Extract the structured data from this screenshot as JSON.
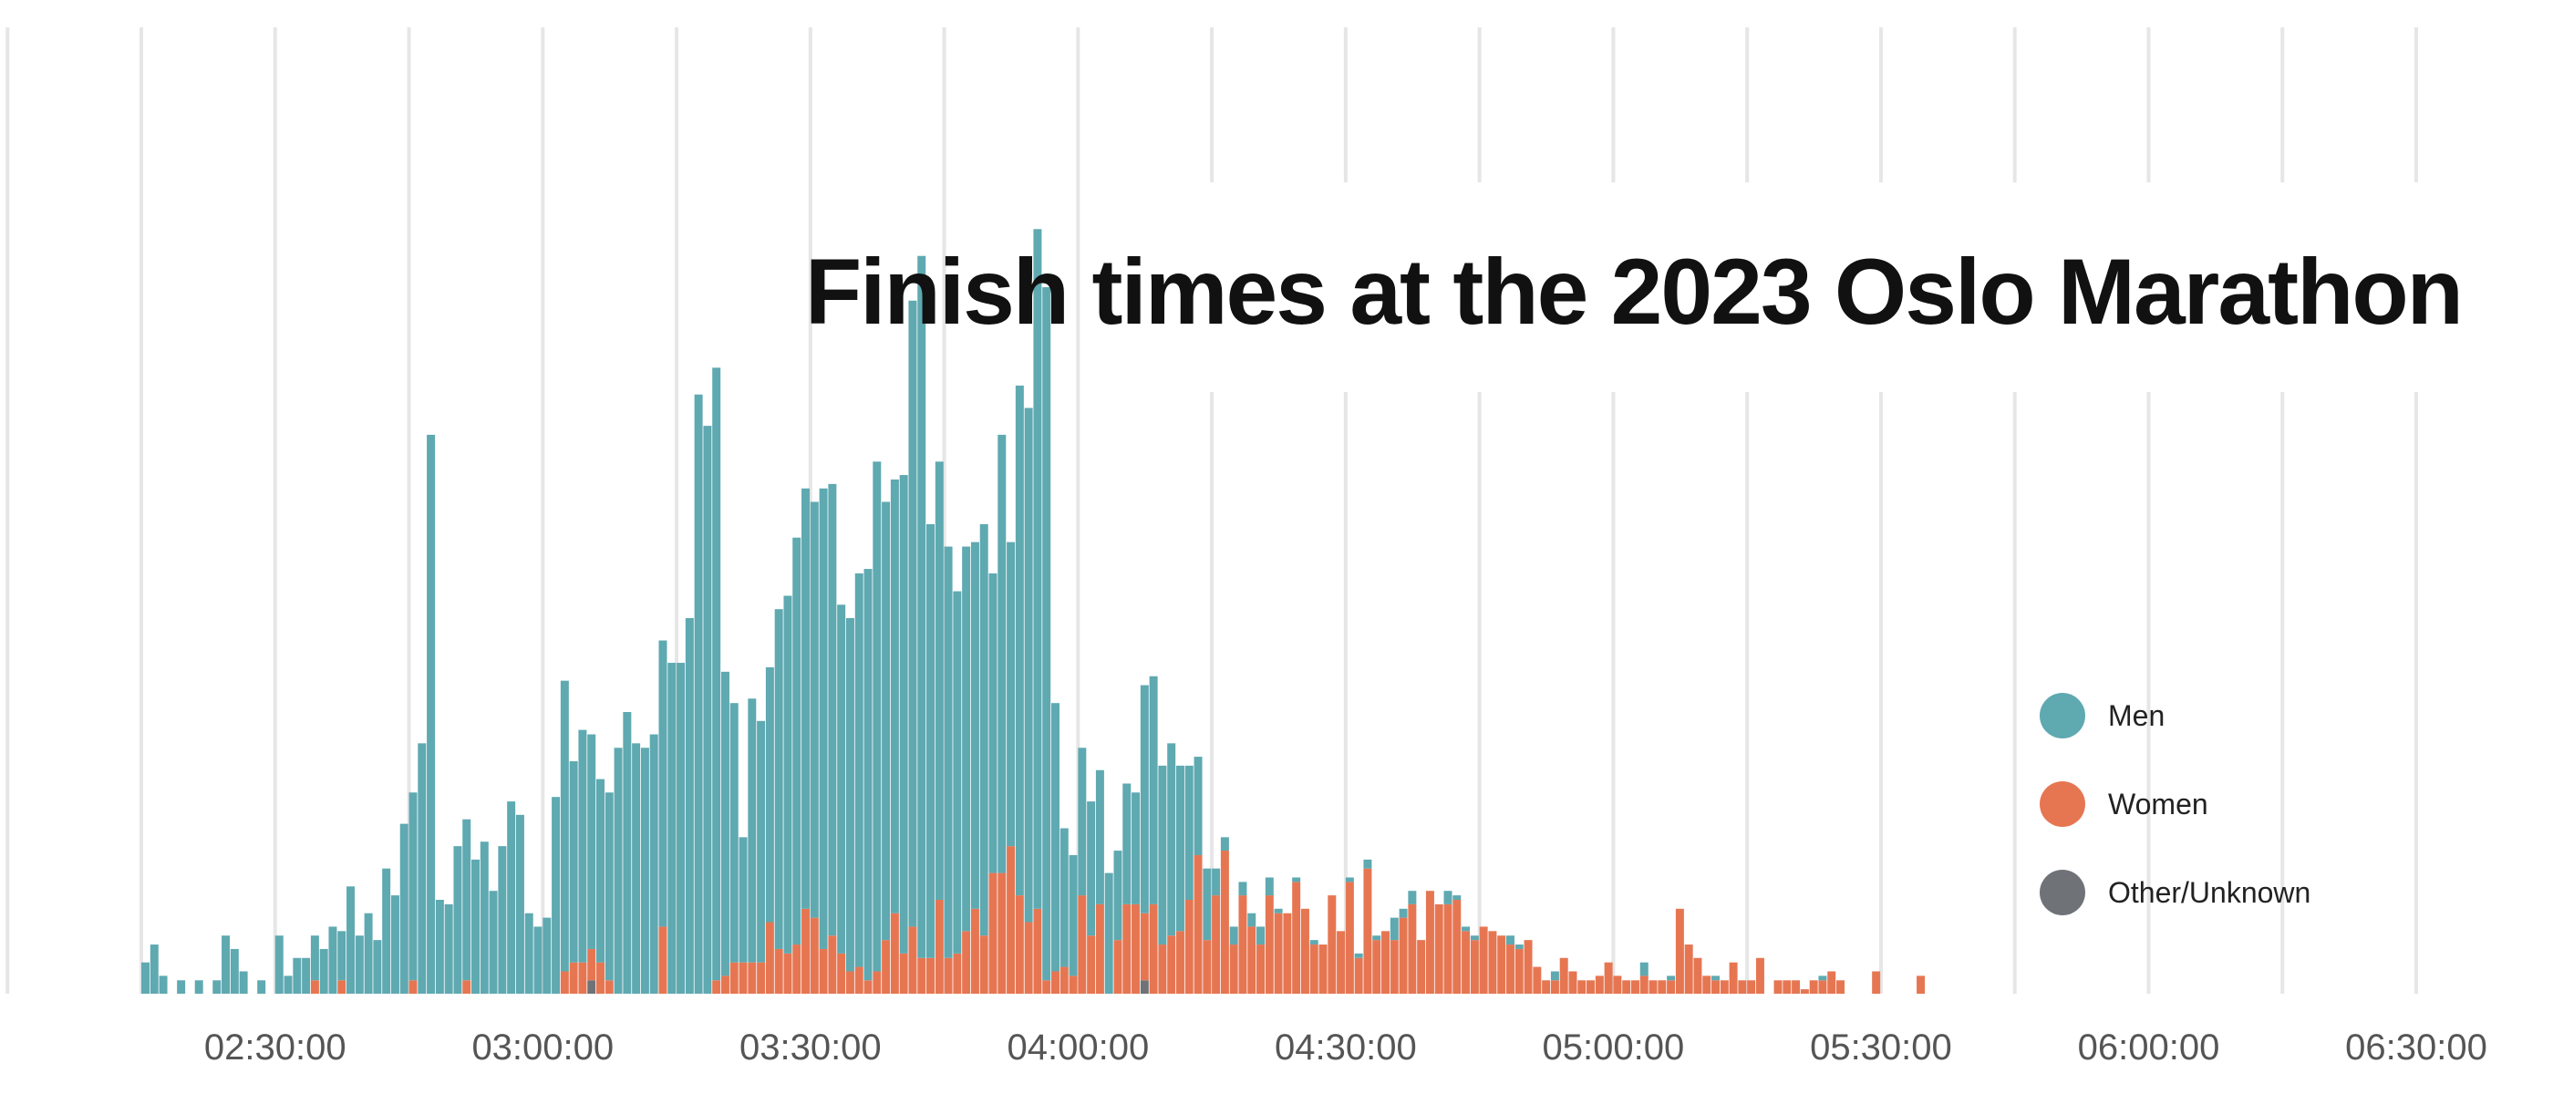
{
  "chart_data": {
    "type": "bar",
    "title": "Finish times at the 2023 Oslo Marathon",
    "xlabel": "",
    "ylabel": "",
    "stacked": true,
    "bin_minutes": 1,
    "x_start": "02:15:00",
    "x_range": [
      "02:15:00",
      "06:30:00"
    ],
    "y_range": [
      0,
      210
    ],
    "grid": "vertical",
    "legend_position": "bottom-right",
    "x_ticks": [
      "02:30:00",
      "03:00:00",
      "03:30:00",
      "04:00:00",
      "04:30:00",
      "05:00:00",
      "05:30:00",
      "06:00:00",
      "06:30:00"
    ],
    "colors": {
      "Men": "#5fa9b1",
      "Women": "#e67652",
      "Other/Unknown": "#6f7378",
      "grid": "#e6e6e6",
      "title": "#111111",
      "tick": "#555555"
    },
    "series": [
      {
        "name": "Men",
        "values": [
          7,
          11,
          4,
          0,
          3,
          0,
          3,
          0,
          3,
          13,
          10,
          5,
          0,
          3,
          0,
          13,
          4,
          8,
          8,
          10,
          10,
          15,
          11,
          24,
          13,
          18,
          12,
          28,
          22,
          38,
          42,
          56,
          125,
          21,
          20,
          33,
          36,
          30,
          34,
          23,
          33,
          43,
          40,
          18,
          15,
          17,
          44,
          65,
          45,
          52,
          48,
          41,
          42,
          55,
          63,
          56,
          55,
          58,
          64,
          74,
          74,
          84,
          134,
          127,
          137,
          68,
          58,
          28,
          59,
          54,
          57,
          76,
          80,
          91,
          94,
          93,
          103,
          101,
          78,
          79,
          88,
          92,
          114,
          98,
          97,
          107,
          140,
          157,
          97,
          98,
          92,
          81,
          86,
          82,
          92,
          67,
          98,
          68,
          114,
          115,
          152,
          155,
          60,
          31,
          27,
          33,
          30,
          30,
          27,
          20,
          27,
          25,
          51,
          51,
          40,
          43,
          37,
          30,
          22,
          16,
          6,
          3,
          4,
          3,
          3,
          4,
          4,
          1,
          0,
          1,
          0,
          1,
          0,
          0,
          0,
          1,
          1,
          2,
          1,
          0,
          5,
          2,
          3,
          0,
          0,
          0,
          3,
          1,
          1,
          1,
          0,
          0,
          0,
          2,
          1,
          0,
          0,
          0,
          2,
          0,
          0,
          0,
          0,
          0,
          0,
          0,
          0,
          0,
          3,
          0,
          0,
          1,
          0,
          0,
          0,
          0,
          1,
          0,
          0,
          0,
          0,
          0,
          0,
          0,
          0,
          0,
          0,
          0,
          1,
          0,
          0,
          0,
          0,
          0,
          0,
          0,
          0,
          0,
          0,
          0,
          0,
          0,
          0,
          0,
          0,
          0,
          0,
          0,
          0,
          0,
          0,
          0,
          0,
          0,
          0,
          0,
          0,
          0,
          0,
          0,
          0,
          0,
          0,
          0,
          0,
          0,
          0,
          0,
          0,
          0,
          0,
          0,
          0,
          0,
          0,
          0,
          0,
          0,
          0,
          0,
          0,
          0,
          0,
          0,
          0,
          0,
          0,
          0,
          0,
          0,
          0,
          0,
          0,
          0,
          0,
          0,
          0,
          0,
          0,
          0
        ]
      },
      {
        "name": "Women",
        "values": [
          0,
          0,
          0,
          0,
          0,
          0,
          0,
          0,
          0,
          0,
          0,
          0,
          0,
          0,
          0,
          0,
          0,
          0,
          0,
          3,
          0,
          0,
          3,
          0,
          0,
          0,
          0,
          0,
          0,
          0,
          3,
          0,
          0,
          0,
          0,
          0,
          3,
          0,
          0,
          0,
          0,
          0,
          0,
          0,
          0,
          0,
          0,
          5,
          7,
          7,
          7,
          7,
          3,
          0,
          0,
          0,
          0,
          0,
          15,
          0,
          0,
          0,
          0,
          0,
          3,
          4,
          7,
          7,
          7,
          7,
          16,
          10,
          9,
          11,
          19,
          17,
          10,
          13,
          9,
          5,
          6,
          3,
          5,
          12,
          18,
          9,
          15,
          8,
          8,
          21,
          8,
          9,
          14,
          19,
          13,
          27,
          27,
          33,
          22,
          16,
          19,
          3,
          5,
          6,
          4,
          22,
          13,
          20,
          0,
          12,
          20,
          20,
          15,
          20,
          11,
          13,
          14,
          21,
          31,
          12,
          22,
          32,
          11,
          22,
          15,
          11,
          22,
          18,
          18,
          25,
          19,
          11,
          11,
          22,
          14,
          25,
          8,
          28,
          12,
          14,
          12,
          17,
          20,
          12,
          23,
          20,
          20,
          21,
          14,
          12,
          15,
          14,
          13,
          11,
          10,
          12,
          6,
          3,
          3,
          8,
          5,
          3,
          3,
          4,
          7,
          4,
          3,
          3,
          4,
          3,
          3,
          3,
          19,
          11,
          8,
          4,
          3,
          3,
          7,
          3,
          3,
          8,
          0,
          3,
          3,
          3,
          1,
          3,
          3,
          5,
          3,
          0,
          0,
          0,
          5,
          0,
          0,
          0,
          0,
          4,
          0,
          0,
          0,
          0,
          0,
          0,
          0,
          0,
          0,
          0,
          0,
          0,
          0,
          0,
          0,
          0,
          0,
          0,
          0,
          0,
          0,
          0,
          0,
          0,
          0,
          0,
          0,
          0,
          0,
          0,
          0,
          0,
          0,
          0,
          0,
          0,
          0,
          0,
          0,
          0,
          0,
          0,
          0,
          0,
          0,
          0,
          0,
          0,
          0,
          0,
          0,
          0,
          0,
          0,
          0,
          0,
          0,
          0,
          0,
          0,
          0,
          0,
          0
        ]
      },
      {
        "name": "Other/Unknown",
        "values": [
          0,
          0,
          0,
          0,
          0,
          0,
          0,
          0,
          0,
          0,
          0,
          0,
          0,
          0,
          0,
          0,
          0,
          0,
          0,
          0,
          0,
          0,
          0,
          0,
          0,
          0,
          0,
          0,
          0,
          0,
          0,
          0,
          0,
          0,
          0,
          0,
          0,
          0,
          0,
          0,
          0,
          0,
          0,
          0,
          0,
          0,
          0,
          0,
          0,
          0,
          3,
          0,
          0,
          0,
          0,
          0,
          0,
          0,
          0,
          0,
          0,
          0,
          0,
          0,
          0,
          0,
          0,
          0,
          0,
          0,
          0,
          0,
          0,
          0,
          0,
          0,
          0,
          0,
          0,
          0,
          0,
          0,
          0,
          0,
          0,
          0,
          0,
          0,
          0,
          0,
          0,
          0,
          0,
          0,
          0,
          0,
          0,
          0,
          0,
          0,
          0,
          0,
          0,
          0,
          0,
          0,
          0,
          0,
          0,
          0,
          0,
          0,
          3,
          0,
          0,
          0,
          0,
          0,
          0,
          0,
          0,
          0,
          0,
          0,
          0,
          0,
          0,
          0,
          0,
          0,
          0,
          0,
          0,
          0,
          0,
          0,
          0,
          0,
          0,
          0,
          0,
          0,
          0,
          0,
          0,
          0,
          0,
          0,
          0,
          0,
          0,
          0,
          0,
          0,
          0,
          0,
          0,
          0,
          0,
          0,
          0,
          0,
          0,
          0,
          0,
          0,
          0,
          0,
          0,
          0,
          0,
          0,
          0,
          0,
          0,
          0,
          0,
          0,
          0,
          0,
          0,
          0,
          0,
          0,
          0,
          0,
          0,
          0,
          0,
          0,
          0,
          0,
          0,
          0,
          0,
          0,
          0,
          0,
          0,
          0,
          0,
          0,
          0,
          0,
          0,
          0,
          0,
          0,
          0,
          0,
          0,
          0,
          0,
          0,
          0,
          0,
          0,
          0,
          0,
          0,
          0,
          0,
          0,
          0,
          0,
          0,
          0,
          0,
          0,
          0,
          0,
          0,
          0,
          0,
          0,
          0,
          0,
          0,
          0,
          0,
          0,
          0,
          0,
          0,
          0,
          0,
          0,
          0,
          0,
          0,
          0,
          0,
          0,
          0,
          0,
          0,
          0,
          0,
          0,
          0,
          0,
          0,
          0
        ]
      }
    ]
  }
}
